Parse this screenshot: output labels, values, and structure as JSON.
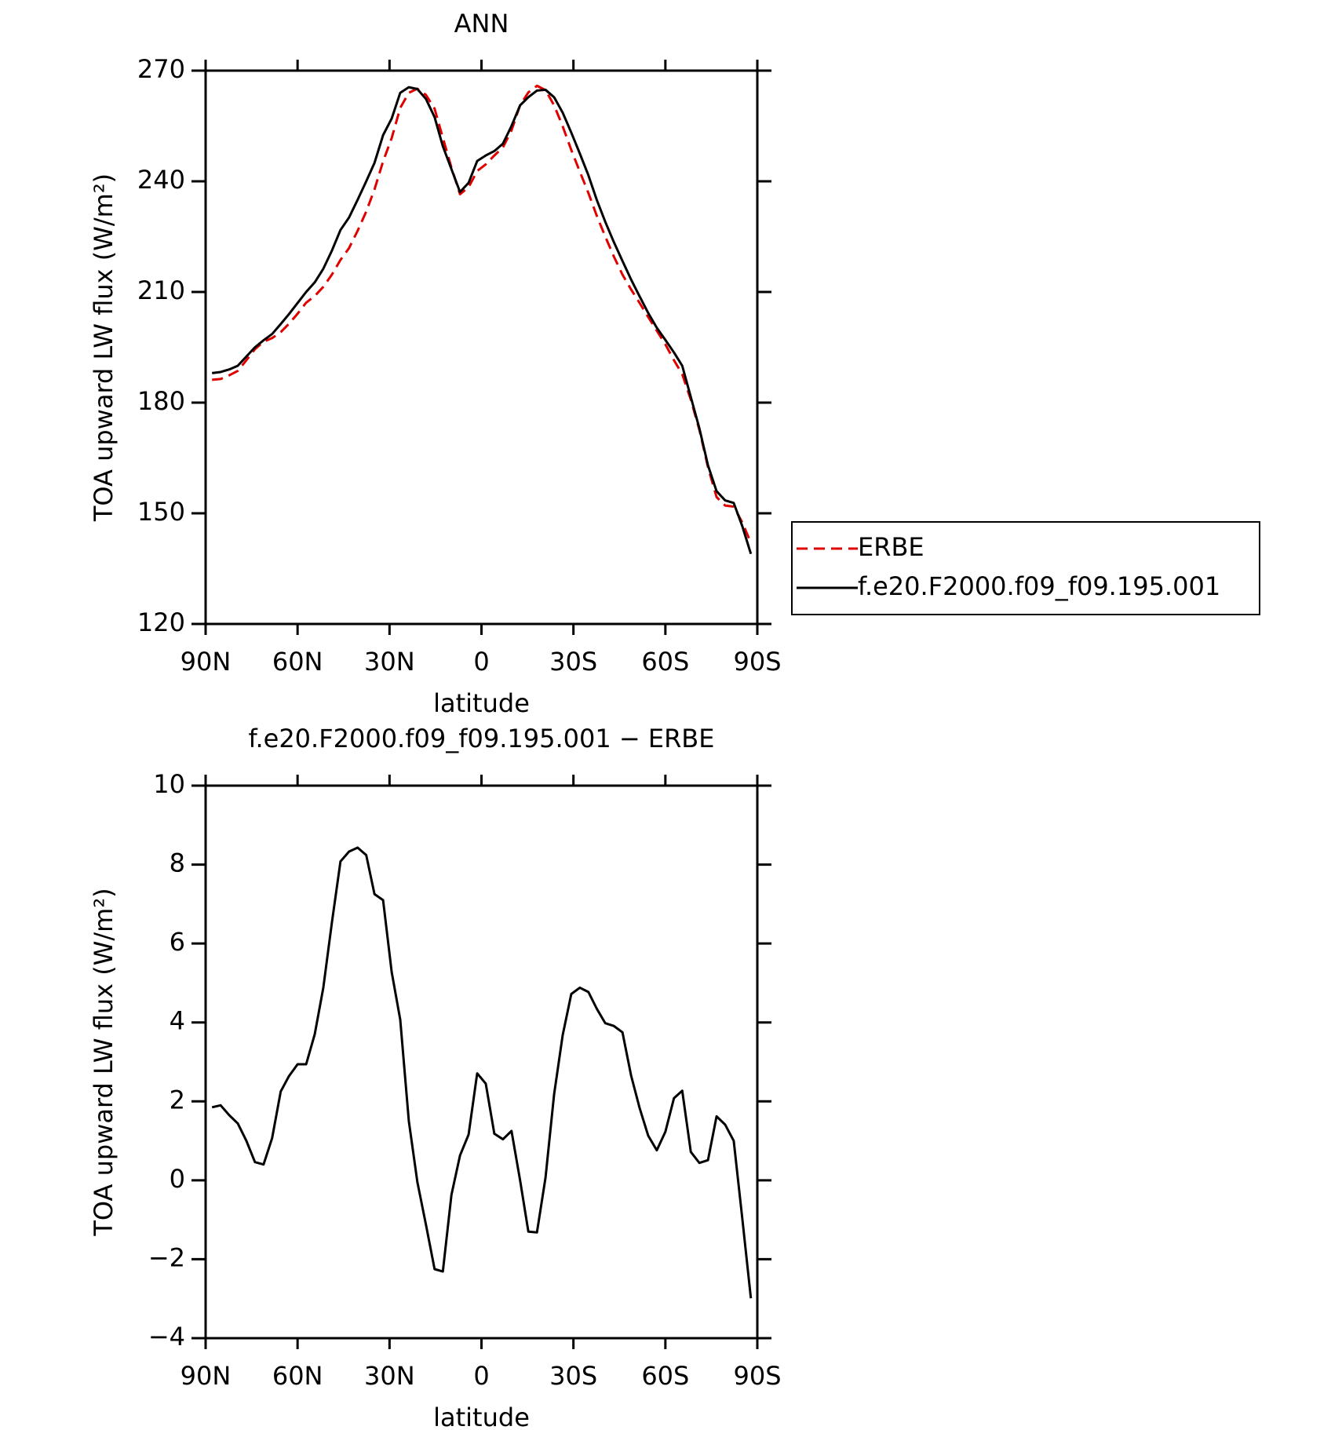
{
  "chart_data": [
    {
      "type": "line",
      "title": "ANN",
      "xlabel": "latitude",
      "ylabel": "TOA upward LW flux (W/m²)",
      "x": [
        87.9,
        85.1,
        82.3,
        79.5,
        76.7,
        73.9,
        71.1,
        68.3,
        65.5,
        62.8,
        60.0,
        57.2,
        54.4,
        51.6,
        48.8,
        46.0,
        43.2,
        40.4,
        37.6,
        34.9,
        32.1,
        29.3,
        26.5,
        23.7,
        20.9,
        18.1,
        15.3,
        12.6,
        9.8,
        7.0,
        4.2,
        1.4,
        -1.4,
        -4.2,
        -7.0,
        -9.8,
        -12.6,
        -15.3,
        -18.1,
        -20.9,
        -23.7,
        -26.5,
        -29.3,
        -32.1,
        -34.9,
        -37.6,
        -40.4,
        -43.2,
        -46.0,
        -48.8,
        -51.6,
        -54.4,
        -57.2,
        -60.0,
        -62.8,
        -65.5,
        -68.3,
        -71.1,
        -73.9,
        -76.7,
        -79.5,
        -82.3,
        -85.1,
        -87.9
      ],
      "xlim": [
        90,
        -90
      ],
      "xticks": [
        {
          "value": 90,
          "label": "90N"
        },
        {
          "value": 60,
          "label": "60N"
        },
        {
          "value": 30,
          "label": "30N"
        },
        0,
        {
          "value": -30,
          "label": "30S"
        },
        {
          "value": -60,
          "label": "60S"
        },
        {
          "value": -90,
          "label": "90S"
        }
      ],
      "ylim": [
        120,
        270
      ],
      "yticks": [
        120,
        150,
        180,
        210,
        240,
        270
      ],
      "legend": "outside-right",
      "series": [
        {
          "name": "ERBE",
          "color": "#e00000",
          "linestyle": "dashed",
          "values": [
            186.2,
            186.4,
            187.4,
            188.6,
            191.5,
            194.5,
            196.5,
            197.5,
            199.1,
            201.4,
            204.1,
            207.1,
            208.9,
            211.4,
            214.7,
            218.7,
            221.9,
            226.6,
            231.8,
            237.8,
            245.4,
            251.7,
            259.9,
            264.0,
            265.1,
            263.4,
            259.7,
            251.8,
            243.7,
            236.5,
            238.4,
            242.8,
            244.6,
            247.0,
            249.2,
            253.8,
            260.6,
            264.1,
            265.9,
            264.7,
            260.6,
            254.9,
            248.5,
            242.6,
            236.8,
            230.7,
            225.0,
            219.6,
            214.7,
            210.7,
            207.0,
            203.2,
            199.5,
            195.8,
            191.5,
            187.7,
            180.8,
            172.6,
            162.5,
            154.4,
            152.1,
            151.8,
            147.5,
            142.0
          ]
        },
        {
          "name": "f.e20.F2000.f09_f09.195.001",
          "color": "#000000",
          "linestyle": "solid",
          "values": [
            188.0,
            188.3,
            189.0,
            190.0,
            192.5,
            195.0,
            196.9,
            198.6,
            201.3,
            204.0,
            207.0,
            210.0,
            212.6,
            216.3,
            221.2,
            226.8,
            230.2,
            235.0,
            240.0,
            245.0,
            252.5,
            257.0,
            264.0,
            265.5,
            265.0,
            262.3,
            257.4,
            249.5,
            243.3,
            237.1,
            239.6,
            245.5,
            247.0,
            248.2,
            250.2,
            255.0,
            260.6,
            262.8,
            264.6,
            264.8,
            262.8,
            258.6,
            253.2,
            247.5,
            241.6,
            235.0,
            229.0,
            223.5,
            218.4,
            213.4,
            208.8,
            204.3,
            200.3,
            197.0,
            193.6,
            190.0,
            181.5,
            173.0,
            163.0,
            156.0,
            153.5,
            152.8,
            146.5,
            139.0
          ]
        }
      ]
    },
    {
      "type": "line",
      "title": "f.e20.F2000.f09_f09.195.001 − ERBE",
      "xlabel": "latitude",
      "ylabel": "TOA upward LW flux (W/m²)",
      "x": [
        87.9,
        85.1,
        82.3,
        79.5,
        76.7,
        73.9,
        71.1,
        68.3,
        65.5,
        62.8,
        60.0,
        57.2,
        54.4,
        51.6,
        48.8,
        46.0,
        43.2,
        40.4,
        37.6,
        34.9,
        32.1,
        29.3,
        26.5,
        23.7,
        20.9,
        18.1,
        15.3,
        12.6,
        9.8,
        7.0,
        4.2,
        1.4,
        -1.4,
        -4.2,
        -7.0,
        -9.8,
        -12.6,
        -15.3,
        -18.1,
        -20.9,
        -23.7,
        -26.5,
        -29.3,
        -32.1,
        -34.9,
        -37.6,
        -40.4,
        -43.2,
        -46.0,
        -48.8,
        -51.6,
        -54.4,
        -57.2,
        -60.0,
        -62.8,
        -65.5,
        -68.3,
        -71.1,
        -73.9,
        -76.7,
        -79.5,
        -82.3,
        -85.1,
        -87.9
      ],
      "xlim": [
        90,
        -90
      ],
      "xticks": [
        {
          "value": 90,
          "label": "90N"
        },
        {
          "value": 60,
          "label": "60N"
        },
        {
          "value": 30,
          "label": "30N"
        },
        0,
        {
          "value": -30,
          "label": "30S"
        },
        {
          "value": -60,
          "label": "60S"
        },
        {
          "value": -90,
          "label": "90S"
        }
      ],
      "ylim": [
        -4,
        10
      ],
      "yticks": [
        {
          "value": -4,
          "label": "−4"
        },
        {
          "value": -2,
          "label": "−2"
        },
        0,
        2,
        4,
        6,
        8,
        10
      ],
      "series": [
        {
          "color": "#000000",
          "linestyle": "solid",
          "values": [
            1.85,
            1.9,
            1.65,
            1.44,
            1.0,
            0.46,
            0.4,
            1.07,
            2.25,
            2.64,
            2.94,
            2.94,
            3.7,
            4.88,
            6.53,
            8.08,
            8.33,
            8.43,
            8.24,
            7.25,
            7.1,
            5.28,
            4.07,
            1.5,
            -0.05,
            -1.13,
            -2.25,
            -2.31,
            -0.37,
            0.63,
            1.16,
            2.71,
            2.45,
            1.18,
            1.04,
            1.25,
            0,
            -1.3,
            -1.32,
            0.07,
            2.18,
            3.68,
            4.72,
            4.88,
            4.77,
            4.35,
            3.98,
            3.91,
            3.75,
            2.66,
            1.83,
            1.13,
            0.76,
            1.23,
            2.08,
            2.27,
            0.72,
            0.44,
            0.51,
            1.62,
            1.41,
            1.0,
            -0.97,
            -2.99
          ]
        }
      ]
    }
  ]
}
